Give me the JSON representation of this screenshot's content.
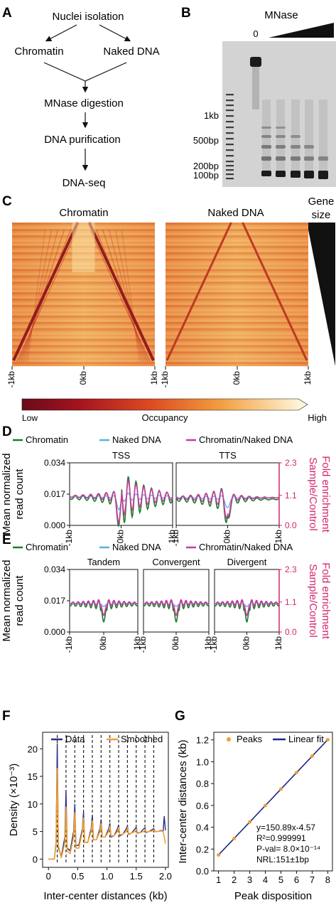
{
  "panels": {
    "a": {
      "letter": "A",
      "nodes": [
        "Nuclei isolation",
        "Chromatin",
        "Naked DNA",
        "MNase digestion",
        "DNA purification",
        "DNA-seq"
      ]
    },
    "b": {
      "letter": "B",
      "title": "MNase",
      "lane0": "0",
      "markers": [
        "1kb",
        "500bp",
        "200bp",
        "100bp"
      ]
    },
    "c": {
      "letter": "C",
      "left_title": "Chromatin",
      "right_title": "Naked DNA",
      "gene_size": [
        "Gene",
        "size"
      ],
      "x_ticks": [
        "-1kb",
        "0kb",
        "1kb"
      ],
      "colorbar_label": "Occupancy",
      "colorbar_low": "Low",
      "colorbar_high": "High"
    },
    "d": {
      "letter": "D",
      "sub_titles": [
        "TSS",
        "TTS"
      ]
    },
    "e": {
      "letter": "E",
      "sub_titles": [
        "Tandem",
        "Convergent",
        "Divergent"
      ]
    },
    "profile_common": {
      "legend": [
        "Chromatin",
        "Naked DNA",
        "Chromatin/Naked DNA"
      ],
      "y_left_label": [
        "Mean normalized",
        "read count"
      ],
      "y_left_ticks": [
        "0.034",
        "0.017",
        "0.000"
      ],
      "y_right_label": [
        "Fold enrichment",
        "Sample/Control"
      ],
      "y_right_ticks": [
        "2.3",
        "1.1",
        "0.0"
      ],
      "x_ticks": [
        "-1kb",
        "0kb",
        "1kb"
      ]
    },
    "f": {
      "letter": "F"
    },
    "g": {
      "letter": "G"
    }
  },
  "colors": {
    "chromatin": "#1f7a2a",
    "naked_dna": "#5aaee8",
    "ratio": "#cc3a9e",
    "right_axis": "#d6246e",
    "data": "#2b2f86",
    "smoothed": "#f0a030",
    "peaks": "#f0a030",
    "fit": "#1c2a80"
  },
  "chart_data": [
    {
      "type": "line",
      "id": "F",
      "legend": [
        "Data",
        "Smoothed"
      ],
      "xlabel": "Inter-center distances (kb)",
      "ylabel": "Density (×10⁻³)",
      "xlim": [
        -0.1,
        2.05
      ],
      "ylim": [
        -1.5,
        23
      ],
      "xticks": [
        0,
        0.5,
        1.0,
        1.5,
        2.0
      ],
      "xtick_labels": [
        "0",
        "0.5",
        "1.0",
        "1.5",
        "2.0"
      ],
      "yticks": [
        0,
        5,
        10,
        15,
        20
      ],
      "peak_positions": [
        0.15,
        0.3,
        0.45,
        0.6,
        0.75,
        0.9,
        1.05,
        1.2,
        1.35,
        1.5,
        1.65,
        1.8
      ],
      "series": [
        {
          "name": "Data",
          "x": [
            0.0,
            0.1,
            0.13,
            0.15,
            0.17,
            0.22,
            0.28,
            0.3,
            0.32,
            0.37,
            0.43,
            0.45,
            0.47,
            0.52,
            0.58,
            0.6,
            0.62,
            0.67,
            0.73,
            0.75,
            0.77,
            0.82,
            0.88,
            0.9,
            0.92,
            0.97,
            1.03,
            1.05,
            1.07,
            1.12,
            1.18,
            1.2,
            1.22,
            1.27,
            1.33,
            1.35,
            1.37,
            1.42,
            1.48,
            1.5,
            1.52,
            1.57,
            1.63,
            1.65,
            1.67,
            1.72,
            1.78,
            1.8,
            1.82,
            1.87,
            1.92,
            1.96,
            1.98,
            2.0
          ],
          "y": [
            0.0,
            0.0,
            3.0,
            21.0,
            2.0,
            0.5,
            4.0,
            12.5,
            2.0,
            1.5,
            5.0,
            10.0,
            2.5,
            2.5,
            5.5,
            8.5,
            3.0,
            3.0,
            5.5,
            8.0,
            3.5,
            3.5,
            5.5,
            7.2,
            4.0,
            4.0,
            5.5,
            6.5,
            4.0,
            4.2,
            5.5,
            6.2,
            4.2,
            4.5,
            5.5,
            6.0,
            4.5,
            4.7,
            5.5,
            5.8,
            4.7,
            4.8,
            5.5,
            5.6,
            4.8,
            5.0,
            5.4,
            5.5,
            5.0,
            5.0,
            5.2,
            5.0,
            7.8,
            5.2
          ]
        },
        {
          "name": "Smoothed",
          "x": [
            0.0,
            0.1,
            0.13,
            0.15,
            0.17,
            0.22,
            0.28,
            0.3,
            0.32,
            0.37,
            0.43,
            0.45,
            0.47,
            0.52,
            0.58,
            0.6,
            0.62,
            0.67,
            0.73,
            0.75,
            0.77,
            0.82,
            0.88,
            0.9,
            0.92,
            0.97,
            1.03,
            1.05,
            1.07,
            1.12,
            1.18,
            1.2,
            1.22,
            1.27,
            1.33,
            1.35,
            1.37,
            1.42,
            1.48,
            1.5,
            1.52,
            1.57,
            1.63,
            1.65,
            1.67,
            1.72,
            1.78,
            1.8,
            1.82,
            1.87,
            1.92,
            1.96,
            1.98,
            2.0
          ],
          "y": [
            0.0,
            0.0,
            2.5,
            16.5,
            2.5,
            0.2,
            3.0,
            9.5,
            1.5,
            1.0,
            4.0,
            8.5,
            2.0,
            2.0,
            5.0,
            7.5,
            3.0,
            3.0,
            5.0,
            7.0,
            3.5,
            3.5,
            5.0,
            6.5,
            4.0,
            4.0,
            5.0,
            6.0,
            4.2,
            4.2,
            5.0,
            5.8,
            4.4,
            4.5,
            5.0,
            5.6,
            4.6,
            4.7,
            5.0,
            5.4,
            4.8,
            4.8,
            5.0,
            5.3,
            4.9,
            5.0,
            5.1,
            5.2,
            5.0,
            5.0,
            5.1,
            5.0,
            4.0,
            2.8
          ]
        }
      ]
    },
    {
      "type": "scatter",
      "id": "G",
      "legend": [
        "Peaks",
        "Linear fit"
      ],
      "xlabel": "Peak disposition",
      "ylabel": "Inter-center distances (kb)",
      "xlim": [
        0.7,
        8.3
      ],
      "ylim": [
        0.0,
        1.27
      ],
      "xticks": [
        1,
        2,
        3,
        4,
        5,
        6,
        7,
        8
      ],
      "yticks": [
        0.0,
        0.2,
        0.4,
        0.6,
        0.8,
        1.0,
        1.2
      ],
      "ytick_labels": [
        "0.0",
        "0.2",
        "0.4",
        "0.6",
        "0.8",
        "1.0",
        "1.2"
      ],
      "points": {
        "x": [
          1,
          2,
          3,
          4,
          5,
          6,
          7,
          8
        ],
        "y": [
          0.146,
          0.297,
          0.448,
          0.599,
          0.75,
          0.901,
          1.052,
          1.202
        ]
      },
      "fit_line": {
        "x": [
          1,
          8
        ],
        "y": [
          0.146,
          1.202
        ]
      },
      "annotations": [
        "y=150.89x-4.57",
        "R²=0.999991",
        "P-val= 8.0×10⁻¹⁴",
        "NRL:151±1bp"
      ]
    }
  ]
}
